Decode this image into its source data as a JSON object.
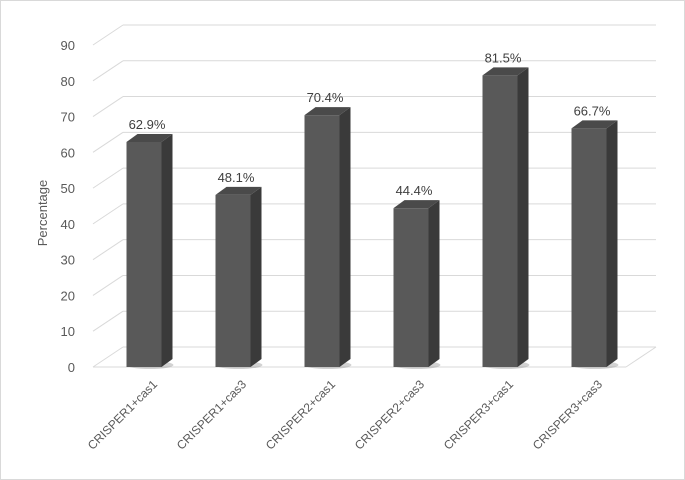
{
  "chart_data": {
    "type": "bar",
    "style": "3d-column",
    "categories": [
      "CRISPER1+cas1",
      "CRISPER1+cas3",
      "CRISPER2+cas1",
      "CRISPER2+cas3",
      "CRISPER3+cas1",
      "CRISPER3+cas3"
    ],
    "values": [
      62.9,
      48.1,
      70.4,
      44.4,
      81.5,
      66.7
    ],
    "data_labels": [
      "62.9%",
      "48.1%",
      "70.4%",
      "44.4%",
      "81.5%",
      "66.7%"
    ],
    "title": "",
    "xlabel": "",
    "ylabel": "Percentage",
    "ylim": [
      0,
      90
    ],
    "yticks": [
      0,
      10,
      20,
      30,
      40,
      50,
      60,
      70,
      80,
      90
    ],
    "grid": true,
    "legend": "none",
    "colors": {
      "bar_front": "#595959",
      "bar_side": "#3a3a3a",
      "bar_top": "#4a4a4a",
      "grid": "#d9d9d9"
    }
  }
}
